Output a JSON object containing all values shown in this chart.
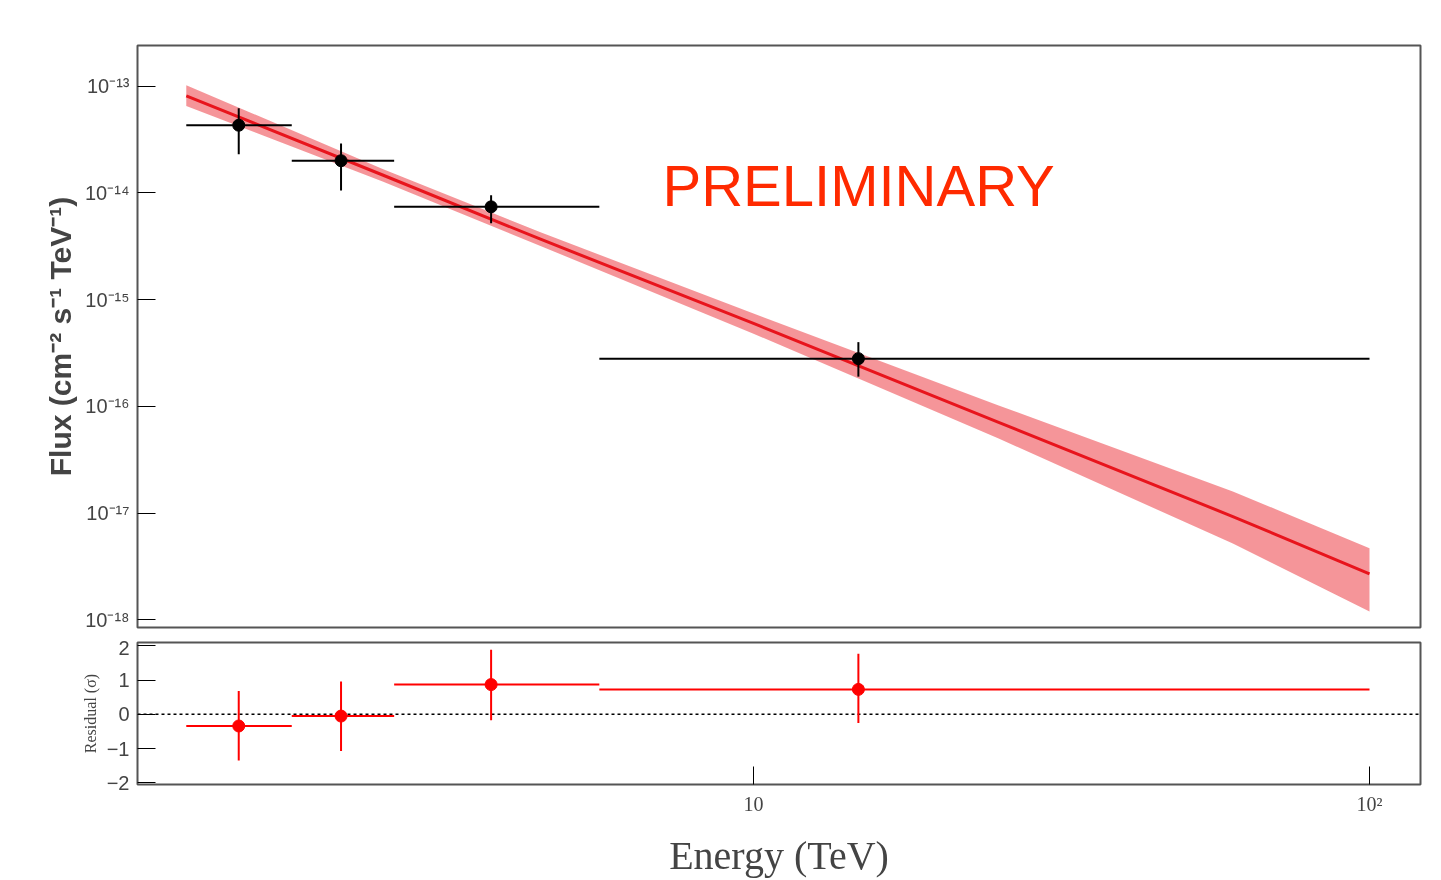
{
  "chart_data": [
    {
      "type": "scatter",
      "ylabel": "Flux (cm⁻² s⁻¹ TeV⁻¹)",
      "log": "xy",
      "marker": "circle",
      "tick_labels": "y",
      "xlim": [
        1,
        121
      ],
      "ylim": [
        8.5e-19,
        2.4e-13
      ],
      "yticks": [
        {
          "value": 1e-18,
          "label": "10⁻¹⁸"
        },
        {
          "value": 1e-17,
          "label": "10⁻¹⁷"
        },
        {
          "value": 1e-16,
          "label": "10⁻¹⁶"
        },
        {
          "value": 1e-15,
          "label": "10⁻¹⁵"
        },
        {
          "value": 1e-14,
          "label": "10⁻¹⁴"
        },
        {
          "value": 1e-13,
          "label": "10⁻¹³"
        }
      ],
      "annotations": [
        "PRELIMINARY"
      ],
      "series": [
        {
          "type": "line",
          "marker": "none",
          "color": "#e8141c",
          "x": [
            1.2,
            2.5,
            4.5,
            10,
            25,
            60,
            100
          ],
          "values": [
            8.1e-14,
            1.47e-14,
            3.7e-15,
            6e-16,
            7.1e-17,
            9.3e-18,
            2.7e-18
          ],
          "lower": [
            6.5e-14,
            1.28e-14,
            3.2e-15,
            4.8e-16,
            5e-17,
            5.2e-18,
            1.2e-18
          ],
          "upper": [
            1.02e-13,
            1.67e-14,
            4.3e-15,
            7.4e-16,
            1.02e-16,
            1.6e-17,
            4.7e-18
          ]
        },
        {
          "color": "#000000",
          "x": [
            1.46,
            2.14,
            3.75,
            14.8
          ],
          "values": [
            4.3e-14,
            2e-14,
            7.4e-15,
            2.8e-16
          ],
          "errors": [
            [
              2.3e-14,
              6.2e-14
            ],
            [
              1.05e-14,
              2.9e-14
            ],
            [
              5.2e-15,
              9.5e-15
            ],
            [
              1.9e-16,
              4e-16
            ]
          ],
          "xerrors": [
            [
              1.2,
              1.78
            ],
            [
              1.78,
              2.61
            ],
            [
              2.61,
              5.62
            ],
            [
              5.62,
              100
            ]
          ]
        }
      ]
    },
    {
      "type": "scatter",
      "ylabel": "Residual (σ)",
      "xlabel": "Energy (TeV)",
      "log": "x",
      "marker": "circle",
      "xlim": [
        1,
        121
      ],
      "ylim": [
        -2.05,
        2.1
      ],
      "yticks": [
        {
          "value": -2,
          "label": "−2"
        },
        {
          "value": -1,
          "label": "−1"
        },
        0,
        1,
        2
      ],
      "xticks": [
        10,
        {
          "value": 100,
          "label": "10²"
        }
      ],
      "ref_lines": [
        {
          "axis": "y",
          "value": 0,
          "label": null,
          "color": "#000000",
          "line_style": "dotted"
        }
      ],
      "series": [
        {
          "color": "#ff0000",
          "x": [
            1.46,
            2.14,
            3.75,
            14.8
          ],
          "values": [
            -0.34,
            -0.05,
            0.87,
            0.73
          ],
          "errors": [
            [
              -1.35,
              0.68
            ],
            [
              -1.07,
              0.96
            ],
            [
              -0.17,
              1.89
            ],
            [
              -0.25,
              1.77
            ]
          ],
          "xerrors": [
            [
              1.2,
              1.78
            ],
            [
              1.78,
              2.61
            ],
            [
              2.61,
              5.62
            ],
            [
              5.62,
              100
            ]
          ]
        }
      ]
    }
  ]
}
